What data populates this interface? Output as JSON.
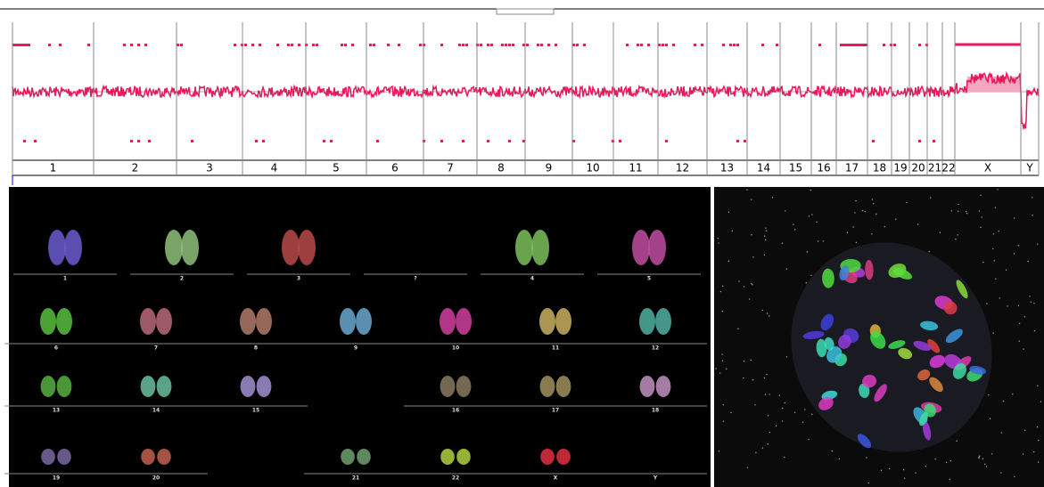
{
  "genome_plot": {
    "chromosomes": [
      "1",
      "2",
      "3",
      "4",
      "5",
      "6",
      "7",
      "8",
      "9",
      "10",
      "11",
      "12",
      "13",
      "14",
      "15",
      "16",
      "17",
      "18",
      "19",
      "20",
      "21",
      "22",
      "X",
      "Y"
    ]
  },
  "karyotype": {
    "rows": [
      [
        "1",
        "2",
        "3",
        "?",
        "4",
        "5"
      ],
      [
        "6",
        "7",
        "8",
        "9",
        "10",
        "11",
        "12"
      ],
      [
        "13",
        "14",
        "15",
        "16",
        "17",
        "18"
      ],
      [
        "19",
        "20",
        "21",
        "22",
        "X",
        "Y"
      ]
    ]
  }
}
